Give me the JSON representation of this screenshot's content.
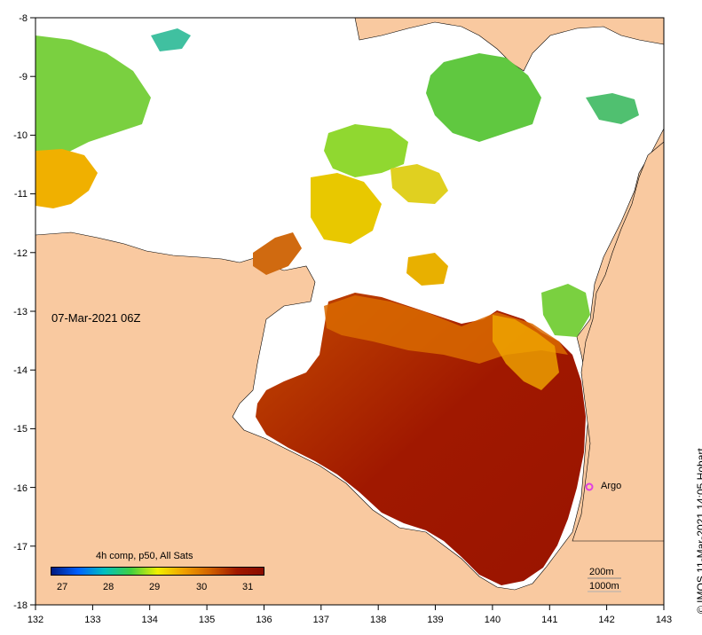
{
  "map": {
    "date": "07-Mar-2021 06Z",
    "x_ticks": [
      "132",
      "133",
      "134",
      "135",
      "136",
      "137",
      "138",
      "139",
      "140",
      "141",
      "142",
      "143"
    ],
    "y_ticks": [
      "-8",
      "-9",
      "-10",
      "-11",
      "-12",
      "-13",
      "-14",
      "-15",
      "-16",
      "-17",
      "-18"
    ],
    "legend": {
      "title": "4h comp, p50, All Sats",
      "ticks": [
        "27",
        "28",
        "29",
        "30",
        "31"
      ],
      "colors": [
        "#001a80",
        "#0060ff",
        "#00c0c0",
        "#40d040",
        "#f0f000",
        "#f0a000",
        "#d06000",
        "#a01800",
        "#8a0c00"
      ]
    },
    "argo_label": "Argo",
    "depth_labels": [
      "200m",
      "1000m"
    ],
    "credit": "© IMOS 11-Mar-2021 14:05 Hobart",
    "colors": {
      "land": "#f9c9a0",
      "no_data": "#ffffff",
      "hot": "#a01800",
      "argo": "#e040e0"
    }
  }
}
